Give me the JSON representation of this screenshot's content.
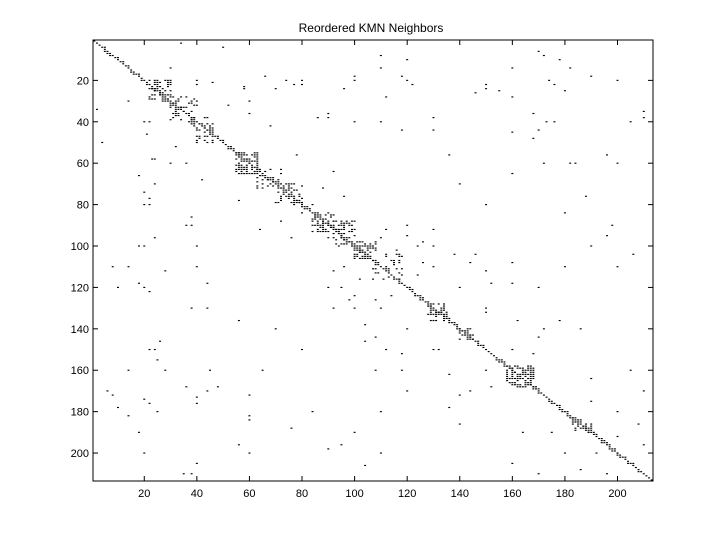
{
  "chart_data": {
    "type": "scatter",
    "title": "Reordered KMN Neighbors",
    "xlabel": "",
    "ylabel": "",
    "xlim": [
      0.5,
      213.5
    ],
    "ylim": [
      0.5,
      213.5
    ],
    "y_reversed": true,
    "grid": false,
    "legend": "none",
    "marker_color": "#000000",
    "x_ticks": [
      20,
      40,
      60,
      80,
      100,
      120,
      140,
      160,
      180,
      200
    ],
    "y_ticks": [
      20,
      40,
      60,
      80,
      100,
      120,
      140,
      160,
      180,
      200
    ],
    "diagonal_range": [
      1,
      213
    ],
    "blocks": [
      {
        "x": [
          22,
          30
        ],
        "y": [
          20,
          30
        ],
        "density": 0.45
      },
      {
        "x": [
          30,
          40
        ],
        "y": [
          28,
          40
        ],
        "density": 0.3
      },
      {
        "x": [
          38,
          46
        ],
        "y": [
          38,
          50
        ],
        "density": 0.25
      },
      {
        "x": [
          55,
          63
        ],
        "y": [
          55,
          65
        ],
        "density": 0.55
      },
      {
        "x": [
          63,
          72
        ],
        "y": [
          63,
          72
        ],
        "density": 0.3
      },
      {
        "x": [
          70,
          80
        ],
        "y": [
          70,
          80
        ],
        "density": 0.35
      },
      {
        "x": [
          84,
          92
        ],
        "y": [
          84,
          93
        ],
        "density": 0.45
      },
      {
        "x": [
          92,
          100
        ],
        "y": [
          88,
          100
        ],
        "density": 0.35
      },
      {
        "x": [
          100,
          108
        ],
        "y": [
          98,
          106
        ],
        "density": 0.5
      },
      {
        "x": [
          106,
          118
        ],
        "y": [
          104,
          116
        ],
        "density": 0.2
      },
      {
        "x": [
          128,
          135
        ],
        "y": [
          128,
          136
        ],
        "density": 0.45
      },
      {
        "x": [
          140,
          145
        ],
        "y": [
          140,
          145
        ],
        "density": 0.4
      },
      {
        "x": [
          158,
          168
        ],
        "y": [
          158,
          168
        ],
        "density": 0.55
      },
      {
        "x": [
          183,
          190
        ],
        "y": [
          183,
          190
        ],
        "density": 0.45
      }
    ],
    "points": [
      [
        40,
        20
      ],
      [
        46,
        21
      ],
      [
        58,
        23
      ],
      [
        70,
        24
      ],
      [
        77,
        22
      ],
      [
        80,
        20
      ],
      [
        100,
        18
      ],
      [
        118,
        18
      ],
      [
        150,
        22
      ],
      [
        155,
        25
      ],
      [
        160,
        28
      ],
      [
        200,
        20
      ],
      [
        205,
        40
      ],
      [
        210,
        38
      ],
      [
        22,
        40
      ],
      [
        52,
        32
      ],
      [
        60,
        36
      ],
      [
        90,
        38
      ],
      [
        110,
        40
      ],
      [
        130,
        38
      ],
      [
        160,
        45
      ],
      [
        170,
        44
      ],
      [
        173,
        40
      ],
      [
        180,
        25
      ],
      [
        24,
        58
      ],
      [
        30,
        60
      ],
      [
        42,
        68
      ],
      [
        38,
        86
      ],
      [
        36,
        90
      ],
      [
        40,
        100
      ],
      [
        20,
        100
      ],
      [
        20,
        120
      ],
      [
        22,
        122
      ],
      [
        44,
        118
      ],
      [
        44,
        130
      ],
      [
        56,
        78
      ],
      [
        60,
        200
      ],
      [
        60,
        182
      ],
      [
        22,
        176
      ],
      [
        36,
        168
      ],
      [
        40,
        176
      ],
      [
        90,
        96
      ],
      [
        95,
        120
      ],
      [
        98,
        126
      ],
      [
        100,
        130
      ],
      [
        104,
        138
      ],
      [
        108,
        144
      ],
      [
        112,
        150
      ],
      [
        118,
        160
      ],
      [
        120,
        170
      ],
      [
        136,
        178
      ],
      [
        150,
        160
      ],
      [
        164,
        190
      ],
      [
        175,
        190
      ],
      [
        196,
        210
      ],
      [
        200,
        200
      ],
      [
        200,
        180
      ],
      [
        210,
        170
      ],
      [
        205,
        160
      ],
      [
        120,
        90
      ],
      [
        124,
        100
      ],
      [
        130,
        110
      ],
      [
        140,
        120
      ],
      [
        150,
        130
      ],
      [
        160,
        108
      ],
      [
        180,
        110
      ],
      [
        190,
        100
      ],
      [
        196,
        95
      ],
      [
        110,
        200
      ],
      [
        104,
        206
      ],
      [
        8,
        110
      ],
      [
        14,
        110
      ],
      [
        35,
        210
      ],
      [
        48,
        168
      ],
      [
        56,
        136
      ],
      [
        92,
        130
      ],
      [
        96,
        110
      ],
      [
        184,
        60
      ],
      [
        188,
        76
      ],
      [
        196,
        56
      ],
      [
        198,
        90
      ],
      [
        120,
        10
      ],
      [
        160,
        14
      ],
      [
        170,
        6
      ],
      [
        178,
        10
      ],
      [
        30,
        14
      ],
      [
        34,
        2
      ],
      [
        50,
        4
      ],
      [
        24,
        96
      ],
      [
        28,
        112
      ],
      [
        140,
        70
      ],
      [
        150,
        80
      ],
      [
        160,
        65
      ],
      [
        172,
        60
      ],
      [
        180,
        84
      ],
      [
        8,
        172
      ],
      [
        14,
        182
      ],
      [
        18,
        190
      ],
      [
        24,
        150
      ],
      [
        26,
        146
      ],
      [
        132,
        150
      ],
      [
        136,
        162
      ],
      [
        140,
        186
      ],
      [
        144,
        170
      ],
      [
        168,
        152
      ],
      [
        172,
        140
      ],
      [
        192,
        200
      ],
      [
        186,
        208
      ],
      [
        174,
        20
      ],
      [
        64,
        92
      ],
      [
        72,
        88
      ],
      [
        76,
        96
      ],
      [
        80,
        84
      ],
      [
        108,
        126
      ],
      [
        112,
        92
      ],
      [
        116,
        102
      ],
      [
        124,
        114
      ],
      [
        146,
        104
      ],
      [
        152,
        118
      ],
      [
        20,
        74
      ],
      [
        22,
        80
      ],
      [
        18,
        66
      ]
    ]
  }
}
